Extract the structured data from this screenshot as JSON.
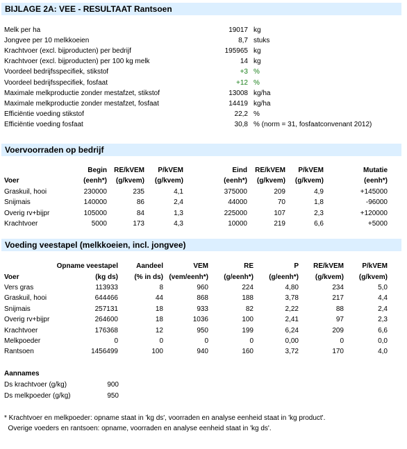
{
  "title": "BIJLAGE 2A: VEE - RESULTAAT Rantsoen",
  "summary": [
    {
      "label": "Melk per ha",
      "value": "19017",
      "unit": "kg"
    },
    {
      "label": "Jongvee per 10 melkkoeien",
      "value": "8,7",
      "unit": "stuks"
    },
    {
      "label": "Krachtvoer (excl. bijproducten) per bedrijf",
      "value": "195965",
      "unit": "kg"
    },
    {
      "label": "Krachtvoer (excl. bijproducten) per 100 kg melk",
      "value": "14",
      "unit": "kg"
    },
    {
      "label": "Voordeel bedrijfsspecifiek, stikstof",
      "value": "+3",
      "unit": "%",
      "green": true
    },
    {
      "label": "Voordeel bedrijfsspecifiek, fosfaat",
      "value": "+12",
      "unit": "%",
      "green": true
    },
    {
      "label": "Maximale melkproductie zonder mestafzet, stikstof",
      "value": "13008",
      "unit": "kg/ha"
    },
    {
      "label": "Maximale melkproductie zonder mestafzet, fosfaat",
      "value": "14419",
      "unit": "kg/ha"
    },
    {
      "label": "Efficiëntie voeding stikstof",
      "value": "22,2",
      "unit": "%"
    },
    {
      "label": "Efficiëntie voeding fosfaat",
      "value": "30,8",
      "unit": "%  (norm = 31, fosfaatconvenant 2012)"
    }
  ],
  "stock": {
    "heading": "Voervoorraden op bedrijf",
    "head1": [
      "Begin",
      "RE/kVEM",
      "P/kVEM",
      "Eind",
      "RE/kVEM",
      "P/kVEM",
      "Mutatie"
    ],
    "head2": [
      "Voer",
      "(eenh*)",
      "(g/kvem)",
      "(g/kvem)",
      "(eenh*)",
      "(g/kvem)",
      "(g/kvem)",
      "(eenh*)"
    ],
    "rows": [
      [
        "Graskuil, hooi",
        "230000",
        "235",
        "4,1",
        "375000",
        "209",
        "4,9",
        "+145000"
      ],
      [
        "Snijmais",
        "140000",
        "86",
        "2,4",
        "44000",
        "70",
        "1,8",
        "-96000"
      ],
      [
        "Overig rv+bijpr",
        "105000",
        "84",
        "1,3",
        "225000",
        "107",
        "2,3",
        "+120000"
      ],
      [
        "Krachtvoer",
        "5000",
        "173",
        "4,3",
        "10000",
        "219",
        "6,6",
        "+5000"
      ]
    ]
  },
  "feeding": {
    "heading": "Voeding veestapel (melkkoeien, incl. jongvee)",
    "head1": [
      "Opname veestapel",
      "Aandeel",
      "VEM",
      "RE",
      "P",
      "RE/kVEM",
      "P/kVEM"
    ],
    "head2": [
      "Voer",
      "(kg ds)",
      "(% in ds)",
      "(vem/eenh*)",
      "(g/eenh*)",
      "(g/eenh*)",
      "(g/kvem)",
      "(g/kvem)"
    ],
    "rows": [
      [
        "Vers gras",
        "113933",
        "8",
        "960",
        "224",
        "4,80",
        "234",
        "5,0"
      ],
      [
        "Graskuil, hooi",
        "644466",
        "44",
        "868",
        "188",
        "3,78",
        "217",
        "4,4"
      ],
      [
        "Snijmais",
        "257131",
        "18",
        "933",
        "82",
        "2,22",
        "88",
        "2,4"
      ],
      [
        "Overig rv+bijpr",
        "264600",
        "18",
        "1036",
        "100",
        "2,41",
        "97",
        "2,3"
      ],
      [
        "Krachtvoer",
        "176368",
        "12",
        "950",
        "199",
        "6,24",
        "209",
        "6,6"
      ],
      [
        "Melkpoeder",
        "0",
        "0",
        "0",
        "0",
        "0,00",
        "0",
        "0,0"
      ],
      [
        "Rantsoen",
        "1456499",
        "100",
        "940",
        "160",
        "3,72",
        "170",
        "4,0"
      ]
    ]
  },
  "assumptions": {
    "heading": "Aannames",
    "rows": [
      {
        "label": "Ds krachtvoer (g/kg)",
        "value": "900"
      },
      {
        "label": "Ds melkpoeder (g/kg)",
        "value": "950"
      }
    ]
  },
  "footnotes": [
    "* Krachtvoer en melkpoeder: opname staat in 'kg ds', voorraden en analyse eenheid staat in 'kg product'.",
    "  Overige voeders en rantsoen: opname, voorraden en analyse eenheid staat in 'kg ds'."
  ]
}
